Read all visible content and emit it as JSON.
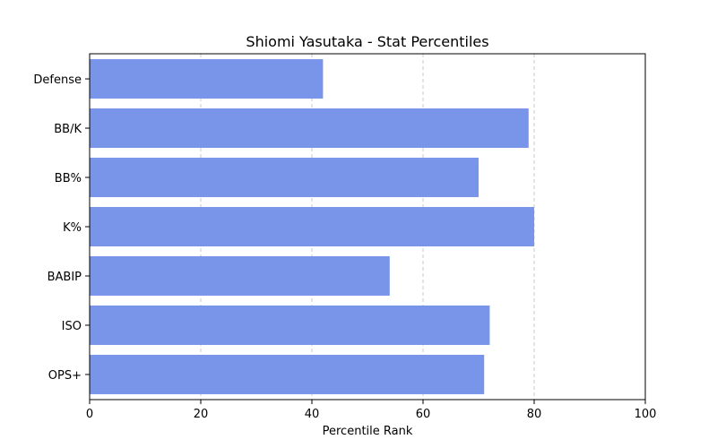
{
  "chart_data": {
    "type": "bar",
    "orientation": "horizontal",
    "title": "Shiomi Yasutaka - Stat Percentiles",
    "xlabel": "Percentile Rank",
    "ylabel": "",
    "categories": [
      "Defense",
      "BB/K",
      "BB%",
      "K%",
      "BABIP",
      "ISO",
      "OPS+"
    ],
    "values": [
      42,
      79,
      70,
      80,
      54,
      72,
      71
    ],
    "xlim": [
      0,
      100
    ],
    "xticks": [
      0,
      20,
      40,
      60,
      80,
      100
    ],
    "grid": "x-dashed",
    "bar_color": "#7995ea"
  }
}
